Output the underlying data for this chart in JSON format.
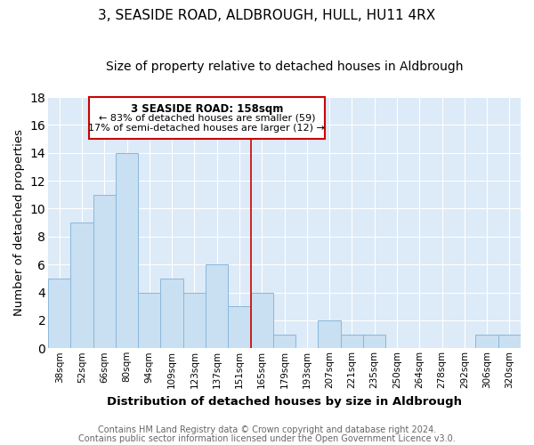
{
  "title": "3, SEASIDE ROAD, ALDBROUGH, HULL, HU11 4RX",
  "subtitle": "Size of property relative to detached houses in Aldbrough",
  "xlabel": "Distribution of detached houses by size in Aldbrough",
  "ylabel": "Number of detached properties",
  "bar_labels": [
    "38sqm",
    "52sqm",
    "66sqm",
    "80sqm",
    "94sqm",
    "109sqm",
    "123sqm",
    "137sqm",
    "151sqm",
    "165sqm",
    "179sqm",
    "193sqm",
    "207sqm",
    "221sqm",
    "235sqm",
    "250sqm",
    "264sqm",
    "278sqm",
    "292sqm",
    "306sqm",
    "320sqm"
  ],
  "bar_values": [
    5,
    9,
    11,
    14,
    4,
    5,
    4,
    6,
    3,
    4,
    1,
    0,
    2,
    1,
    1,
    0,
    0,
    0,
    0,
    1,
    1
  ],
  "bar_color": "#c9dff2",
  "bar_edge_color": "#89b8db",
  "vline_x": 8.5,
  "vline_color": "#cc0000",
  "annotation_title": "3 SEASIDE ROAD: 158sqm",
  "annotation_line1": "← 83% of detached houses are smaller (59)",
  "annotation_line2": "17% of semi-detached houses are larger (12) →",
  "annotation_box_color": "#ffffff",
  "annotation_box_edge": "#cc0000",
  "ylim": [
    0,
    18
  ],
  "yticks": [
    0,
    2,
    4,
    6,
    8,
    10,
    12,
    14,
    16,
    18
  ],
  "footer1": "Contains HM Land Registry data © Crown copyright and database right 2024.",
  "footer2": "Contains public sector information licensed under the Open Government Licence v3.0.",
  "background_color": "#ddeaf7",
  "plot_bg_color": "#ddeaf7",
  "grid_color": "#ffffff",
  "title_fontsize": 11,
  "subtitle_fontsize": 10,
  "axis_label_fontsize": 9.5,
  "tick_fontsize": 7.5,
  "footer_fontsize": 7,
  "ann_title_fontsize": 8.5,
  "ann_text_fontsize": 8
}
